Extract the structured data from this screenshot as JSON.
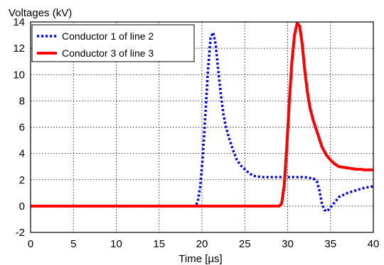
{
  "chart_data": {
    "type": "line",
    "ylabel": "Voltages (kV)",
    "xlabel": "Time [µs]",
    "xlim": [
      0,
      40
    ],
    "ylim": [
      -2,
      14
    ],
    "xticks": [
      "0",
      "5",
      "10",
      "15",
      "20",
      "25",
      "30",
      "35",
      "40"
    ],
    "yticks": [
      "-2",
      "0",
      "2",
      "4",
      "6",
      "8",
      "10",
      "12",
      "14"
    ],
    "grid": true,
    "legend_position": "top-left",
    "series": [
      {
        "name": "Conductor 1 of line 2",
        "color": "#0000ff",
        "style": "dotted",
        "x": [
          0,
          19.2,
          19.5,
          19.8,
          20.1,
          20.4,
          20.7,
          21.0,
          21.3,
          21.6,
          21.9,
          22.2,
          22.5,
          22.8,
          23.1,
          23.5,
          24.0,
          24.5,
          25.0,
          25.5,
          26.0,
          27.0,
          28.0,
          29.0,
          30.0,
          31.0,
          32.0,
          33.0,
          33.4,
          33.7,
          34.0,
          34.3,
          34.6,
          35.0,
          35.5,
          36.0,
          37.0,
          38.0,
          39.0,
          40.0
        ],
        "y": [
          0,
          0,
          0.3,
          1.5,
          3.8,
          7.0,
          10.3,
          12.8,
          13.2,
          12.3,
          10.3,
          8.5,
          7.0,
          6.0,
          5.3,
          4.5,
          3.6,
          3.1,
          2.8,
          2.5,
          2.3,
          2.2,
          2.2,
          2.2,
          2.2,
          2.2,
          2.2,
          2.1,
          1.9,
          1.2,
          0.2,
          -0.3,
          -0.4,
          -0.1,
          0.3,
          0.7,
          1.0,
          1.2,
          1.4,
          1.5
        ]
      },
      {
        "name": "Conductor 3 of line 3",
        "color": "#ff0000",
        "style": "solid",
        "x": [
          0,
          29.0,
          29.3,
          29.6,
          29.9,
          30.2,
          30.5,
          30.8,
          31.1,
          31.4,
          31.7,
          32.0,
          32.3,
          32.6,
          33.0,
          33.5,
          34.0,
          34.5,
          35.0,
          35.5,
          36.0,
          36.5,
          37.0,
          37.5,
          38.0,
          38.5,
          39.0,
          39.5,
          40.0
        ],
        "y": [
          0,
          0,
          0.2,
          1.6,
          4.5,
          8.0,
          11.0,
          13.0,
          13.9,
          13.7,
          12.3,
          10.3,
          8.7,
          7.5,
          6.5,
          5.5,
          4.5,
          3.9,
          3.5,
          3.2,
          3.0,
          2.95,
          2.9,
          2.85,
          2.8,
          2.8,
          2.75,
          2.75,
          2.75
        ]
      }
    ]
  }
}
